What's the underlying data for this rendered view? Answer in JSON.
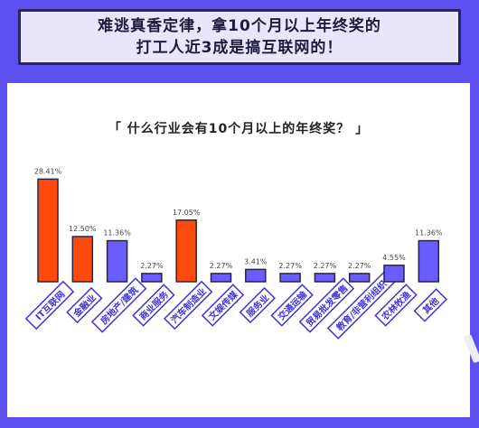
{
  "headline": {
    "line1": "难逃真香定律，拿10个月以上年终奖的",
    "line2": "打工人近3成是搞互联网的！"
  },
  "chart_data": {
    "type": "bar",
    "title": "「 什么行业会有10个月以上的年终奖？ 」",
    "categories": [
      "IT互联网",
      "金融业",
      "房地产/建筑",
      "商业服务",
      "汽车制造业",
      "文娱传媒",
      "服务业",
      "交通运输",
      "贸易批发零售",
      "教育/非营利组织",
      "农林牧渔",
      "其他"
    ],
    "values": [
      28.41,
      12.5,
      11.36,
      2.27,
      17.05,
      2.27,
      3.41,
      2.27,
      2.27,
      2.27,
      4.55,
      11.36
    ],
    "value_labels": [
      "28.41%",
      "12.50%",
      "11.36%",
      "2.27%",
      "17.05%",
      "2.27%",
      "3.41%",
      "2.27%",
      "2.27%",
      "2.27%",
      "4.55%",
      "11.36%"
    ],
    "highlight": [
      true,
      true,
      false,
      false,
      true,
      false,
      false,
      false,
      false,
      false,
      false,
      false
    ],
    "ylim": [
      0,
      30
    ],
    "grid": false,
    "xlabel": "",
    "ylabel": ""
  },
  "colors": {
    "background": "#5b4ff0",
    "highlight_bar": "#ff4a0d",
    "normal_bar": "#6a5cff",
    "bar_outline": "#2a2540",
    "label_box_border": "#3e34d8"
  }
}
